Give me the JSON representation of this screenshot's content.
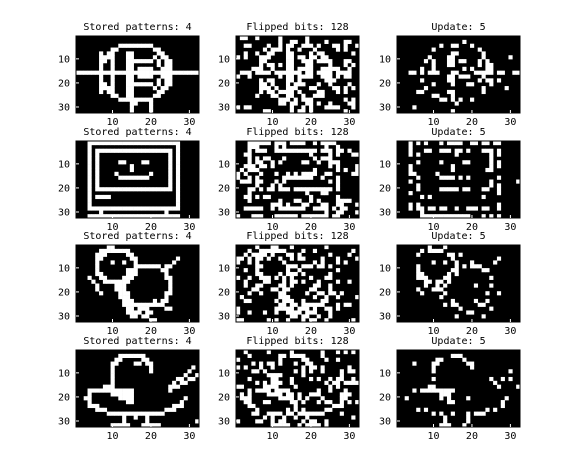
{
  "chart_data": {
    "type": "heatmap",
    "layout": {
      "rows": 4,
      "cols": 3
    },
    "column_titles": [
      "Stored patterns: 4",
      "Flipped bits: 128",
      "Update: 5"
    ],
    "x_ticks": [
      10,
      20,
      30
    ],
    "y_ticks": [
      10,
      20,
      30
    ],
    "image_size": {
      "cols": 32,
      "rows": 20
    },
    "x_range": [
      0.5,
      32.5
    ],
    "y_range": [
      0.5,
      32.5
    ],
    "colormap": {
      "on": "#ffffff",
      "off": "#000000"
    },
    "grid": false,
    "rows": [
      {
        "original": "spaceship pattern",
        "corrupted": "spaceship pattern with 128 flipped bits",
        "recalled": "partially recovered spaceship"
      },
      {
        "original": "computer monitor face",
        "corrupted": "monitor with 128 flipped bits",
        "recalled": "partially recovered monitor"
      },
      {
        "original": "pointing bird figure",
        "corrupted": "figure with 128 flipped bits",
        "recalled": "partially recovered figure"
      },
      {
        "original": "bird",
        "corrupted": "bird with 128 flipped bits",
        "recalled": "partially recovered bird"
      }
    ]
  }
}
